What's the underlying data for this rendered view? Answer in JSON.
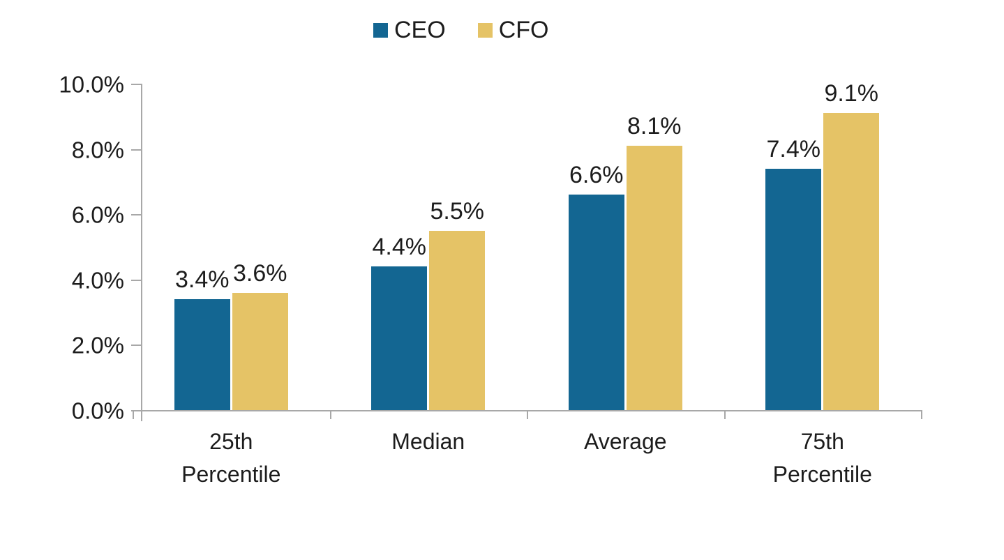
{
  "chart_data": {
    "type": "bar",
    "title": "",
    "categories": [
      "25th\nPercentile",
      "Median",
      "Average",
      "75th\nPercentile"
    ],
    "series": [
      {
        "name": "CEO",
        "color": "#136692",
        "values": [
          3.4,
          4.4,
          6.6,
          7.4
        ],
        "labels": [
          "3.4%",
          "4.4%",
          "6.6%",
          "7.4%"
        ]
      },
      {
        "name": "CFO",
        "color": "#e5c366",
        "values": [
          3.6,
          5.5,
          8.1,
          9.1
        ],
        "labels": [
          "3.6%",
          "5.5%",
          "8.1%",
          "9.1%"
        ]
      }
    ],
    "yticks": [
      {
        "value": 0,
        "label": "0.0%"
      },
      {
        "value": 2,
        "label": "2.0%"
      },
      {
        "value": 4,
        "label": "4.0%"
      },
      {
        "value": 6,
        "label": "6.0%"
      },
      {
        "value": 8,
        "label": "8.0%"
      },
      {
        "value": 10,
        "label": "10.0%"
      }
    ],
    "ylim": [
      0,
      10
    ],
    "xlabel": "",
    "ylabel": "",
    "legend_position": "top",
    "grid": false,
    "colors": {
      "axis": "#a8a8a8",
      "text": "#1c1c1c",
      "background": "#ffffff"
    }
  }
}
